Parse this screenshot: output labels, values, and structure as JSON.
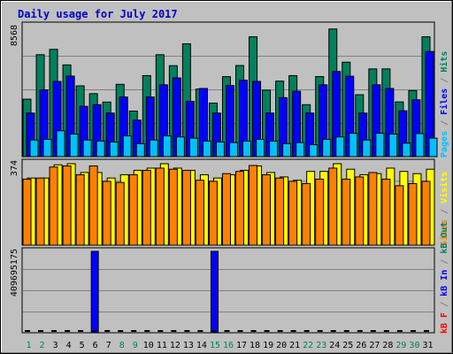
{
  "title": "Daily usage for July 2017",
  "colors": {
    "frame_bg": "#C0C0C0",
    "plot_bg": "#C0C0C0",
    "grid": "#808080",
    "title": "#0000CC",
    "hits": "#00805C",
    "files": "#0000FF",
    "pages": "#00C0FF",
    "visits": "#FFFF00",
    "sites": "#FF8000",
    "kb_f": "#FF0000",
    "kb_in": "#0000FF",
    "kb_out": "#00805C"
  },
  "chart_data": [
    {
      "type": "bar",
      "panel": "requests",
      "y_max_label": "8568",
      "ylim": [
        0,
        8568
      ],
      "legend": [
        {
          "label": "Pages",
          "key": "pages"
        },
        {
          "label": " / ",
          "key": "sep"
        },
        {
          "label": "Files",
          "key": "files"
        },
        {
          "label": " / ",
          "key": "sep"
        },
        {
          "label": "Hits",
          "key": "hits"
        }
      ],
      "categories": [
        "1",
        "2",
        "3",
        "4",
        "5",
        "6",
        "7",
        "8",
        "9",
        "10",
        "11",
        "12",
        "13",
        "14",
        "15",
        "16",
        "17",
        "18",
        "19",
        "20",
        "21",
        "22",
        "23",
        "24",
        "25",
        "26",
        "27",
        "28",
        "29",
        "30",
        "31"
      ],
      "weekend_days": [
        "1",
        "2",
        "8",
        "9",
        "15",
        "16",
        "22",
        "23",
        "29",
        "30"
      ],
      "series": [
        {
          "name": "Hits",
          "key": "hits",
          "values": [
            3760,
            6670,
            7020,
            6000,
            4630,
            4120,
            3570,
            4730,
            2980,
            5300,
            6670,
            5950,
            7380,
            4420,
            3500,
            5230,
            5960,
            7840,
            4350,
            4940,
            5300,
            3400,
            5240,
            8350,
            6180,
            4050,
            5740,
            5740,
            3580,
            4320,
            7840
          ]
        },
        {
          "name": "Files",
          "key": "files",
          "values": [
            2850,
            4370,
            4920,
            5270,
            3290,
            3400,
            2850,
            3900,
            2390,
            3900,
            4700,
            5150,
            3620,
            4460,
            2850,
            4650,
            5000,
            4920,
            2850,
            3860,
            4280,
            2850,
            4700,
            5570,
            5260,
            2850,
            4700,
            4460,
            3000,
            3720,
            6880
          ]
        },
        {
          "name": "Pages",
          "key": "pages",
          "values": [
            1090,
            1130,
            1690,
            1480,
            1090,
            1020,
            960,
            1360,
            850,
            1090,
            1360,
            1290,
            1210,
            1020,
            960,
            920,
            1020,
            1130,
            1020,
            850,
            920,
            780,
            1130,
            1290,
            1530,
            1090,
            1530,
            1480,
            880,
            1510,
            1210
          ]
        }
      ]
    },
    {
      "type": "bar",
      "panel": "visitors",
      "y_max_label": "374",
      "ylim": [
        0,
        374
      ],
      "legend": [
        {
          "label": "Sites",
          "key": "sites"
        },
        {
          "label": " / ",
          "key": "sep"
        },
        {
          "label": "Visits",
          "key": "visits"
        }
      ],
      "categories": [
        "1",
        "2",
        "3",
        "4",
        "5",
        "6",
        "7",
        "8",
        "9",
        "10",
        "11",
        "12",
        "13",
        "14",
        "15",
        "16",
        "17",
        "18",
        "19",
        "20",
        "21",
        "22",
        "23",
        "24",
        "25",
        "26",
        "27",
        "28",
        "29",
        "30",
        "31"
      ],
      "series": [
        {
          "name": "Visits",
          "key": "visits",
          "values": [
            305,
            305,
            365,
            370,
            330,
            330,
            305,
            320,
            340,
            350,
            370,
            350,
            340,
            320,
            305,
            320,
            340,
            360,
            330,
            310,
            295,
            335,
            335,
            370,
            345,
            320,
            325,
            350,
            335,
            325,
            345
          ]
        },
        {
          "name": "Sites",
          "key": "sites",
          "values": [
            300,
            305,
            355,
            360,
            320,
            360,
            290,
            285,
            320,
            340,
            350,
            345,
            340,
            295,
            290,
            325,
            335,
            362,
            320,
            305,
            290,
            280,
            300,
            350,
            300,
            310,
            330,
            300,
            270,
            280,
            290
          ]
        }
      ]
    },
    {
      "type": "bar",
      "panel": "traffic",
      "y_max_label": "409695175",
      "ylim": [
        0,
        409695175
      ],
      "legend": [
        {
          "label": "kB F",
          "key": "kb_f"
        },
        {
          "label": " / ",
          "key": "sep"
        },
        {
          "label": "kB In",
          "key": "kb_in"
        },
        {
          "label": " / ",
          "key": "sep"
        },
        {
          "label": "kB Out",
          "key": "kb_out"
        }
      ],
      "categories": [
        "1",
        "2",
        "3",
        "4",
        "5",
        "6",
        "7",
        "8",
        "9",
        "10",
        "11",
        "12",
        "13",
        "14",
        "15",
        "16",
        "17",
        "18",
        "19",
        "20",
        "21",
        "22",
        "23",
        "24",
        "25",
        "26",
        "27",
        "28",
        "29",
        "30",
        "31"
      ],
      "series": [
        {
          "name": "kB In",
          "key": "kb_in",
          "values": [
            0,
            0,
            0,
            0,
            0,
            409695175,
            0,
            0,
            0,
            0,
            0,
            0,
            0,
            0,
            409695175,
            0,
            0,
            0,
            0,
            0,
            0,
            0,
            0,
            0,
            0,
            0,
            0,
            0,
            0,
            0,
            0
          ]
        },
        {
          "name": "kB Out",
          "key": "kb_out",
          "values": [
            6000000,
            6000000,
            6000000,
            6000000,
            6000000,
            6000000,
            6000000,
            6000000,
            6000000,
            6000000,
            6000000,
            6000000,
            6000000,
            6000000,
            6000000,
            6000000,
            6000000,
            6000000,
            6000000,
            6000000,
            6000000,
            6000000,
            6000000,
            6000000,
            6000000,
            6000000,
            6000000,
            6000000,
            6000000,
            6000000,
            6000000
          ]
        }
      ]
    }
  ]
}
